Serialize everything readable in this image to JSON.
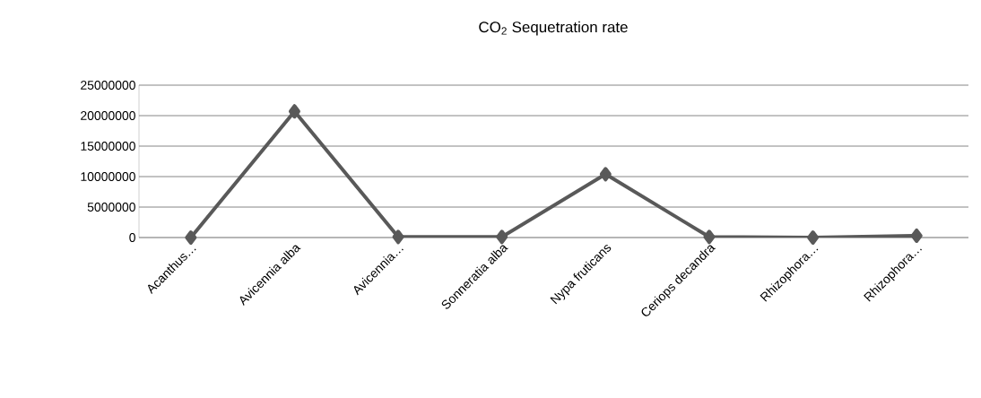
{
  "chart_data": {
    "type": "line",
    "title": "CO$_{2}$ Sequetration rate",
    "categories": [
      "Acanthus…",
      "Avicennia alba",
      "Avicennia…",
      "Sonneratia alba",
      "Nypa fruticans",
      "Ceriops decandra",
      "Rhizophora…",
      "Rhizophora…"
    ],
    "series": [
      {
        "color": "#595959",
        "values": [
          0,
          20700000,
          100000,
          100000,
          10400000,
          100000,
          0,
          300000
        ]
      }
    ],
    "ylim": [
      0,
      25000000
    ],
    "yticks": [
      0,
      5000000,
      10000000,
      15000000,
      20000000,
      25000000
    ],
    "grid": "y",
    "marker": "diamond",
    "line_style": "solid"
  }
}
